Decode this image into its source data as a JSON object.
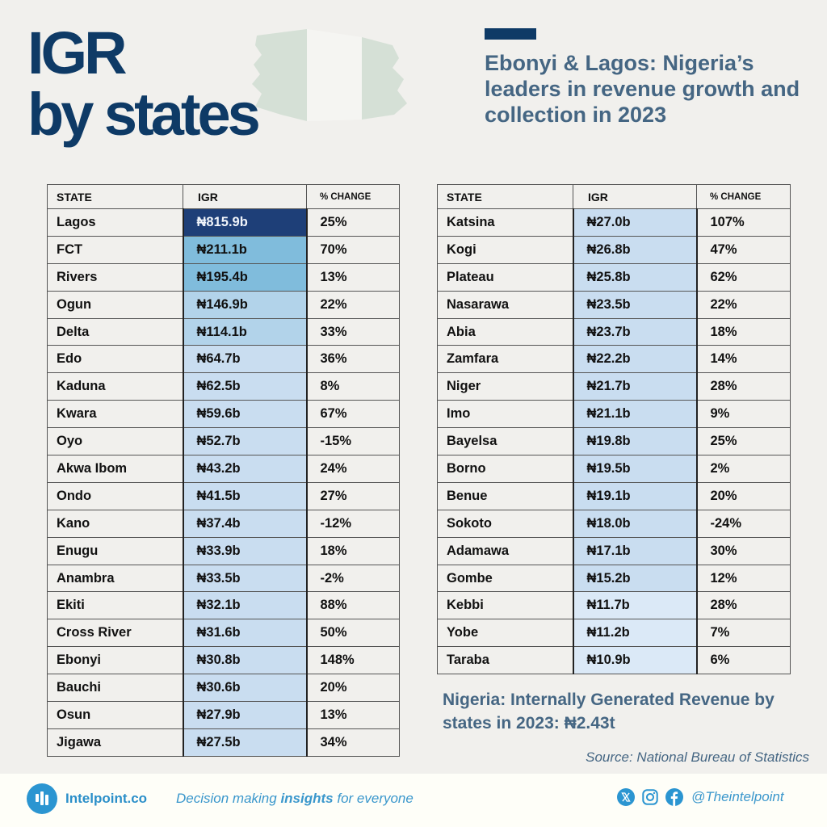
{
  "header": {
    "title_line1": "IGR",
    "title_line2": "by states",
    "subtitle": "Ebonyi & Lagos: Nigeria’s leaders in revenue growth and collection in 2023"
  },
  "colors": {
    "title": "#0e3a66",
    "subtitle": "#456683",
    "igr_scale": [
      "#dbe9f7",
      "#c9ddf0",
      "#b2d3ea",
      "#80bcdc",
      "#1e3f78"
    ],
    "brand": "#2b95d1"
  },
  "table": {
    "columns": [
      "STATE",
      "IGR",
      "% CHANGE"
    ],
    "left_rows": [
      {
        "state": "Lagos",
        "igr": "₦815.9b",
        "change": "25%"
      },
      {
        "state": "FCT",
        "igr": "₦211.1b",
        "change": "70%"
      },
      {
        "state": "Rivers",
        "igr": "₦195.4b",
        "change": "13%"
      },
      {
        "state": "Ogun",
        "igr": "₦146.9b",
        "change": "22%"
      },
      {
        "state": "Delta",
        "igr": "₦114.1b",
        "change": "33%"
      },
      {
        "state": "Edo",
        "igr": "₦64.7b",
        "change": "36%"
      },
      {
        "state": "Kaduna",
        "igr": "₦62.5b",
        "change": "8%"
      },
      {
        "state": "Kwara",
        "igr": "₦59.6b",
        "change": "67%"
      },
      {
        "state": "Oyo",
        "igr": "₦52.7b",
        "change": "-15%"
      },
      {
        "state": "Akwa Ibom",
        "igr": "₦43.2b",
        "change": "24%"
      },
      {
        "state": "Ondo",
        "igr": "₦41.5b",
        "change": "27%"
      },
      {
        "state": "Kano",
        "igr": "₦37.4b",
        "change": "-12%"
      },
      {
        "state": "Enugu",
        "igr": "₦33.9b",
        "change": "18%"
      },
      {
        "state": "Anambra",
        "igr": "₦33.5b",
        "change": "-2%"
      },
      {
        "state": "Ekiti",
        "igr": "₦32.1b",
        "change": "88%"
      },
      {
        "state": "Cross River",
        "igr": "₦31.6b",
        "change": "50%"
      },
      {
        "state": "Ebonyi",
        "igr": "₦30.8b",
        "change": "148%"
      },
      {
        "state": "Bauchi",
        "igr": "₦30.6b",
        "change": "20%"
      },
      {
        "state": "Osun",
        "igr": "₦27.9b",
        "change": "13%"
      },
      {
        "state": "Jigawa",
        "igr": "₦27.5b",
        "change": "34%"
      }
    ],
    "right_rows": [
      {
        "state": "Katsina",
        "igr": "₦27.0b",
        "change": "107%"
      },
      {
        "state": "Kogi",
        "igr": "₦26.8b",
        "change": "47%"
      },
      {
        "state": "Plateau",
        "igr": "₦25.8b",
        "change": "62%"
      },
      {
        "state": "Nasarawa",
        "igr": "₦23.5b",
        "change": "22%"
      },
      {
        "state": "Abia",
        "igr": "₦23.7b",
        "change": "18%"
      },
      {
        "state": "Zamfara",
        "igr": "₦22.2b",
        "change": "14%"
      },
      {
        "state": "Niger",
        "igr": "₦21.7b",
        "change": "28%"
      },
      {
        "state": "Imo",
        "igr": "₦21.1b",
        "change": "9%"
      },
      {
        "state": "Bayelsa",
        "igr": "₦19.8b",
        "change": "25%"
      },
      {
        "state": "Borno",
        "igr": "₦19.5b",
        "change": "2%"
      },
      {
        "state": "Benue",
        "igr": "₦19.1b",
        "change": "20%"
      },
      {
        "state": "Sokoto",
        "igr": "₦18.0b",
        "change": "-24%"
      },
      {
        "state": "Adamawa",
        "igr": "₦17.1b",
        "change": "30%"
      },
      {
        "state": "Gombe",
        "igr": "₦15.2b",
        "change": "12%"
      },
      {
        "state": "Kebbi",
        "igr": "₦11.7b",
        "change": "28%"
      },
      {
        "state": "Yobe",
        "igr": "₦11.2b",
        "change": "7%"
      },
      {
        "state": "Taraba",
        "igr": "₦10.9b",
        "change": "6%"
      }
    ]
  },
  "chart_data": {
    "type": "table",
    "title": "IGR by states",
    "subtitle": "Ebonyi & Lagos: Nigeria’s leaders in revenue growth and collection in 2023",
    "columns": [
      "STATE",
      "IGR",
      "% CHANGE"
    ],
    "unit": "₦ billion",
    "categories": [
      "Lagos",
      "FCT",
      "Rivers",
      "Ogun",
      "Delta",
      "Edo",
      "Kaduna",
      "Kwara",
      "Oyo",
      "Akwa Ibom",
      "Ondo",
      "Kano",
      "Enugu",
      "Anambra",
      "Ekiti",
      "Cross River",
      "Ebonyi",
      "Bauchi",
      "Osun",
      "Jigawa",
      "Katsina",
      "Kogi",
      "Plateau",
      "Nasarawa",
      "Abia",
      "Zamfara",
      "Niger",
      "Imo",
      "Bayelsa",
      "Borno",
      "Benue",
      "Sokoto",
      "Adamawa",
      "Gombe",
      "Kebbi",
      "Yobe",
      "Taraba"
    ],
    "series": [
      {
        "name": "IGR (₦b)",
        "values": [
          815.9,
          211.1,
          195.4,
          146.9,
          114.1,
          64.7,
          62.5,
          59.6,
          52.7,
          43.2,
          41.5,
          37.4,
          33.9,
          33.5,
          32.1,
          31.6,
          30.8,
          30.6,
          27.9,
          27.5,
          27.0,
          26.8,
          25.8,
          23.5,
          23.7,
          22.2,
          21.7,
          21.1,
          19.8,
          19.5,
          19.1,
          18.0,
          17.1,
          15.2,
          11.7,
          11.2,
          10.9
        ]
      },
      {
        "name": "% CHANGE",
        "values": [
          25,
          70,
          13,
          22,
          33,
          36,
          8,
          67,
          -15,
          24,
          27,
          -12,
          18,
          -2,
          88,
          50,
          148,
          20,
          13,
          34,
          107,
          47,
          62,
          22,
          18,
          14,
          28,
          9,
          25,
          2,
          20,
          -24,
          30,
          12,
          28,
          7,
          6
        ]
      }
    ],
    "total_note": "Nigeria: Internally Generated Revenue by states in 2023: ₦2.43t",
    "source": "Source: National Bureau of Statistics"
  },
  "summary": {
    "total_note": "Nigeria: Internally Generated Revenue by states in 2023: ₦2.43t",
    "source": "Source: National Bureau of Statistics"
  },
  "footer": {
    "brand": "Intelpoint.co",
    "tagline_pre": "Decision making ",
    "tagline_bold": "insights",
    "tagline_post": " for everyone",
    "handle": "@Theintelpoint",
    "icons": [
      "x-icon",
      "instagram-icon",
      "facebook-icon"
    ]
  }
}
